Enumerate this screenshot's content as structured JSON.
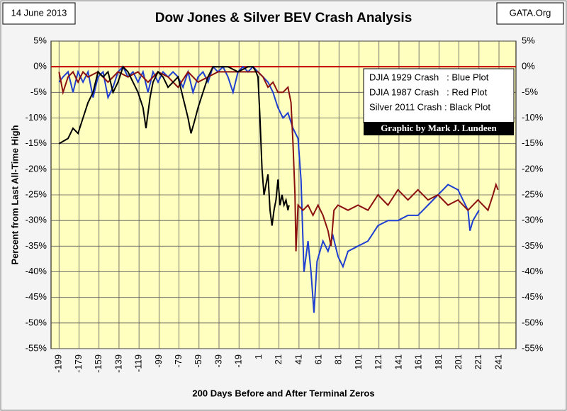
{
  "chart_data": {
    "type": "line",
    "title": "Dow Jones & Silver BEV Crash Analysis",
    "date": "14 June 2013",
    "source": "GATA.Org",
    "xlabel": "200 Days Before and After Terminal Zeros",
    "ylabel": "Percent from Last All-Time High",
    "legend": [
      "DJIA 1929 Crash   : Blue Plot",
      "DJIA 1987 Crash   : Red Plot",
      "Silver 2011 Crash : Black Plot"
    ],
    "credit": "Graphic by Mark J. Lundeen",
    "grid": true,
    "hline": {
      "value": 0,
      "color": "#c00000"
    },
    "xlim": [
      -207,
      258
    ],
    "xticks": [
      -199,
      -179,
      -159,
      -139,
      -119,
      -99,
      -79,
      -59,
      -39,
      -19,
      1,
      21,
      41,
      61,
      81,
      101,
      121,
      141,
      161,
      181,
      201,
      221,
      241
    ],
    "ylim": [
      -55,
      5
    ],
    "yticks": [
      {
        "value": 5,
        "label": "5%"
      },
      {
        "value": 0,
        "label": "0%"
      },
      {
        "value": -5,
        "label": "-5%"
      },
      {
        "value": -10,
        "label": "-10%"
      },
      {
        "value": -15,
        "label": "-15%"
      },
      {
        "value": -20,
        "label": "-20%"
      },
      {
        "value": -25,
        "label": "-25%"
      },
      {
        "value": -30,
        "label": "-30%"
      },
      {
        "value": -35,
        "label": "-35%"
      },
      {
        "value": -40,
        "label": "-40%"
      },
      {
        "value": -45,
        "label": "-45%"
      },
      {
        "value": -50,
        "label": "-50%"
      },
      {
        "value": -55,
        "label": "-55%"
      }
    ],
    "series": [
      {
        "name": "DJIA 1929 Crash",
        "color": "#1f3fd0",
        "x": [
          -199,
          -195,
          -190,
          -185,
          -180,
          -175,
          -170,
          -165,
          -160,
          -155,
          -150,
          -145,
          -140,
          -135,
          -130,
          -125,
          -120,
          -115,
          -110,
          -105,
          -100,
          -95,
          -90,
          -85,
          -80,
          -75,
          -70,
          -65,
          -60,
          -55,
          -50,
          -45,
          -40,
          -35,
          -30,
          -25,
          -20,
          -15,
          -10,
          -5,
          0,
          5,
          10,
          15,
          20,
          25,
          30,
          35,
          40,
          43,
          46,
          50,
          53,
          56,
          59,
          65,
          70,
          75,
          80,
          85,
          90,
          100,
          110,
          120,
          130,
          140,
          150,
          160,
          170,
          180,
          190,
          200,
          205,
          210,
          212,
          215,
          218,
          221
        ],
        "values": [
          -3,
          -2,
          -1,
          -5,
          -1,
          -3,
          -1,
          -6,
          -2,
          -1,
          -6,
          -4,
          -1,
          0,
          -2,
          -1,
          -3,
          -1,
          -5,
          -1,
          -3,
          -1,
          -2,
          -1,
          -2,
          -4,
          -1,
          -5,
          -2,
          -1,
          -3,
          0,
          -1,
          0,
          -2,
          -5,
          -1,
          0,
          -1,
          0,
          -1,
          -2,
          -3,
          -5,
          -8,
          -10,
          -9,
          -12,
          -14,
          -22,
          -40,
          -34,
          -40,
          -48,
          -38,
          -34,
          -36,
          -33,
          -37,
          -39,
          -36,
          -35,
          -34,
          -31,
          -30,
          -30,
          -29,
          -29,
          -27,
          -25,
          -23,
          -24,
          -26,
          -28,
          -32,
          -30,
          -29,
          -28
        ]
      },
      {
        "name": "DJIA 1987 Crash",
        "color": "#8b1010",
        "x": [
          -199,
          -195,
          -190,
          -185,
          -180,
          -175,
          -170,
          -160,
          -150,
          -140,
          -130,
          -120,
          -110,
          -100,
          -90,
          -80,
          -70,
          -60,
          -50,
          -40,
          -30,
          -15,
          0,
          5,
          10,
          15,
          20,
          25,
          30,
          33,
          35,
          37,
          38,
          40,
          45,
          50,
          55,
          60,
          65,
          70,
          73,
          76,
          80,
          90,
          100,
          110,
          120,
          130,
          140,
          150,
          160,
          170,
          180,
          190,
          200,
          210,
          220,
          230,
          235,
          238,
          240
        ],
        "values": [
          -1,
          -5,
          -2,
          -1,
          -3,
          -1,
          -2,
          -1,
          -3,
          -1,
          -2,
          -1,
          -3,
          -1,
          -2,
          -4,
          -1,
          -3,
          -2,
          -1,
          -1,
          -1,
          -1,
          -2,
          -4,
          -3,
          -5,
          -5,
          -4,
          -7,
          -15,
          -25,
          -36,
          -27,
          -28,
          -27,
          -29,
          -27,
          -29,
          -32,
          -35,
          -28,
          -27,
          -28,
          -27,
          -28,
          -25,
          -27,
          -24,
          -26,
          -24,
          -26,
          -25,
          -27,
          -26,
          -28,
          -26,
          -28,
          -25,
          -23,
          -24
        ]
      },
      {
        "name": "Silver 2011 Crash",
        "color": "#000000",
        "x": [
          -199,
          -190,
          -185,
          -180,
          -175,
          -170,
          -165,
          -160,
          -155,
          -150,
          -145,
          -140,
          -135,
          -130,
          -125,
          -120,
          -115,
          -112,
          -108,
          -105,
          -100,
          -95,
          -90,
          -85,
          -80,
          -75,
          -70,
          -67,
          -64,
          -60,
          -55,
          -50,
          -45,
          -40,
          -30,
          -20,
          -10,
          -5,
          -2,
          0,
          2,
          4,
          6,
          8,
          10,
          12,
          14,
          16,
          18,
          20,
          22,
          24,
          26,
          28,
          30,
          31
        ],
        "values": [
          -15,
          -14,
          -12,
          -13,
          -10,
          -7,
          -5,
          -1,
          -2,
          -1,
          -5,
          -3,
          0,
          -1,
          -3,
          -5,
          -8,
          -12,
          -6,
          -3,
          -1,
          -2,
          -4,
          -3,
          -2,
          -6,
          -10,
          -13,
          -11,
          -8,
          -5,
          -2,
          0,
          0,
          0,
          -1,
          0,
          0,
          -1,
          -2,
          -10,
          -20,
          -25,
          -23,
          -21,
          -28,
          -31,
          -28,
          -26,
          -22,
          -27,
          -25,
          -27,
          -26,
          -28,
          -27
        ]
      }
    ]
  }
}
